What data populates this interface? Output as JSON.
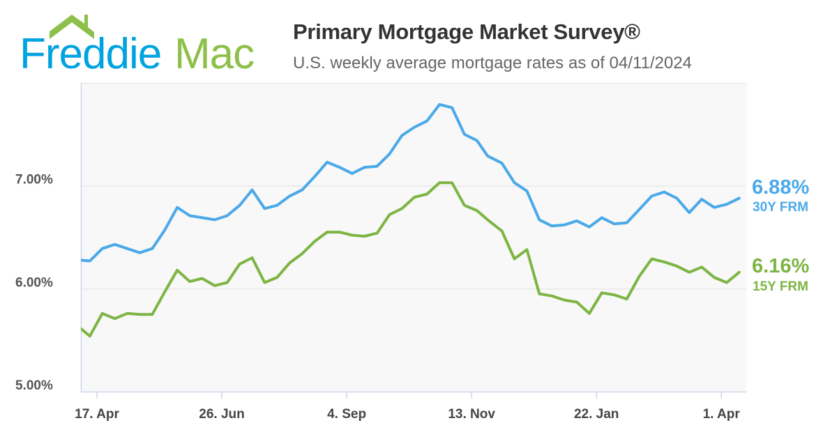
{
  "logo": {
    "text_left": "Freddie",
    "text_right": "Mac",
    "colors": {
      "blue": "#00a3e0",
      "green": "#8cc04a"
    }
  },
  "header": {
    "title": "Primary Mortgage Market Survey®",
    "subtitle": "U.S. weekly average mortgage rates as of 04/11/2024"
  },
  "chart_data": {
    "type": "line",
    "title": "Primary Mortgage Market Survey®",
    "subtitle": "U.S. weekly average mortgage rates as of 04/11/2024",
    "xlabel": "",
    "ylabel": "",
    "xlim": [
      "2023-04-08",
      "2024-04-15"
    ],
    "ylim": [
      5,
      8
    ],
    "grid": true,
    "y_ticks": [
      {
        "value": 5,
        "label": "5.00%"
      },
      {
        "value": 6,
        "label": "6.00%"
      },
      {
        "value": 7,
        "label": "7.00%"
      }
    ],
    "x_ticks": [
      {
        "date": "2023-04-17",
        "label": "17. Apr"
      },
      {
        "date": "2023-06-26",
        "label": "26. Jun"
      },
      {
        "date": "2023-09-04",
        "label": "4. Sep"
      },
      {
        "date": "2023-11-13",
        "label": "13. Nov"
      },
      {
        "date": "2024-01-22",
        "label": "22. Jan"
      },
      {
        "date": "2024-04-01",
        "label": "1. Apr"
      }
    ],
    "x": [
      "2023-04-06",
      "2023-04-13",
      "2023-04-20",
      "2023-04-27",
      "2023-05-04",
      "2023-05-11",
      "2023-05-18",
      "2023-05-25",
      "2023-06-01",
      "2023-06-08",
      "2023-06-15",
      "2023-06-22",
      "2023-06-29",
      "2023-07-06",
      "2023-07-13",
      "2023-07-20",
      "2023-07-27",
      "2023-08-03",
      "2023-08-10",
      "2023-08-17",
      "2023-08-24",
      "2023-08-31",
      "2023-09-07",
      "2023-09-14",
      "2023-09-21",
      "2023-09-28",
      "2023-10-05",
      "2023-10-12",
      "2023-10-19",
      "2023-10-26",
      "2023-11-02",
      "2023-11-09",
      "2023-11-16",
      "2023-11-22",
      "2023-11-30",
      "2023-12-07",
      "2023-12-14",
      "2023-12-21",
      "2023-12-28",
      "2024-01-04",
      "2024-01-11",
      "2024-01-18",
      "2024-01-25",
      "2024-02-01",
      "2024-02-08",
      "2024-02-15",
      "2024-02-22",
      "2024-02-29",
      "2024-03-07",
      "2024-03-14",
      "2024-03-21",
      "2024-03-28",
      "2024-04-04",
      "2024-04-11"
    ],
    "series": [
      {
        "name": "30Y FRM",
        "color": "#4ba9e9",
        "last_label": "6.88%",
        "values": [
          6.28,
          6.27,
          6.39,
          6.43,
          6.39,
          6.35,
          6.39,
          6.57,
          6.79,
          6.71,
          6.69,
          6.67,
          6.71,
          6.81,
          6.96,
          6.78,
          6.81,
          6.9,
          6.96,
          7.09,
          7.23,
          7.18,
          7.12,
          7.18,
          7.19,
          7.31,
          7.49,
          7.57,
          7.63,
          7.79,
          7.76,
          7.5,
          7.44,
          7.29,
          7.22,
          7.03,
          6.95,
          6.67,
          6.61,
          6.62,
          6.66,
          6.6,
          6.69,
          6.63,
          6.64,
          6.77,
          6.9,
          6.94,
          6.88,
          6.74,
          6.87,
          6.79,
          6.82,
          6.88
        ]
      },
      {
        "name": "15Y FRM",
        "color": "#7db544",
        "last_label": "6.16%",
        "values": [
          5.64,
          5.54,
          5.76,
          5.71,
          5.76,
          5.75,
          5.75,
          5.97,
          6.18,
          6.07,
          6.1,
          6.03,
          6.06,
          6.24,
          6.3,
          6.06,
          6.11,
          6.25,
          6.34,
          6.46,
          6.55,
          6.55,
          6.52,
          6.51,
          6.54,
          6.72,
          6.78,
          6.89,
          6.92,
          7.03,
          7.03,
          6.81,
          6.76,
          6.67,
          6.56,
          6.29,
          6.38,
          5.95,
          5.93,
          5.89,
          5.87,
          5.76,
          5.96,
          5.94,
          5.9,
          6.12,
          6.29,
          6.26,
          6.22,
          6.16,
          6.21,
          6.11,
          6.06,
          6.16
        ]
      }
    ]
  }
}
